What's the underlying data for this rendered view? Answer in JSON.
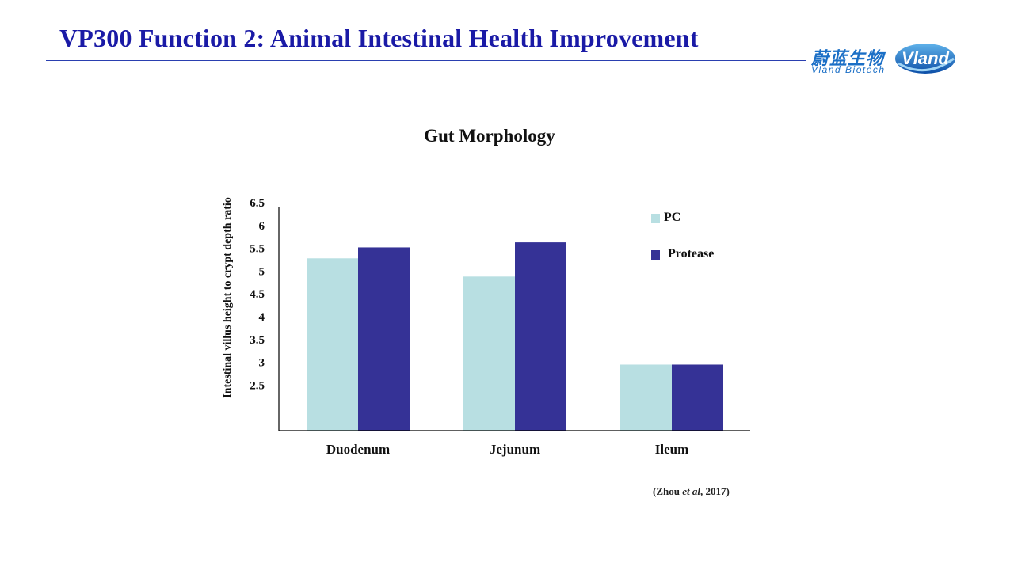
{
  "slide": {
    "title": "VP300 Function 2: Animal Intestinal Health Improvement"
  },
  "logo": {
    "chinese_name": "蔚蓝生物",
    "english_name": "Vland Biotech",
    "badge_text": "Vland",
    "brand_color": "#1b6fc6"
  },
  "citation": {
    "author": "(Zhou ",
    "etal": "et al",
    "year": ", 2017)"
  },
  "chart_data": {
    "type": "bar",
    "title": "Gut Morphology",
    "xlabel": "",
    "ylabel": "Intestinal villus height to crypt depth  ratio",
    "categories": [
      "Duodenum",
      "Jejunum",
      "Ileum"
    ],
    "series": [
      {
        "name": "PC",
        "values": [
          5.28,
          4.88,
          2.95
        ],
        "color": "#b8dfe2"
      },
      {
        "name": "Protease",
        "values": [
          5.52,
          5.63,
          2.95
        ],
        "color": "#353296"
      }
    ],
    "yticks": [
      "6.5",
      "6",
      "5.5",
      "5",
      "4.5",
      "4",
      "3.5",
      "3",
      "2.5"
    ],
    "ylim": [
      1.5,
      6.5
    ],
    "grid": false,
    "legend_position": "top-right"
  }
}
